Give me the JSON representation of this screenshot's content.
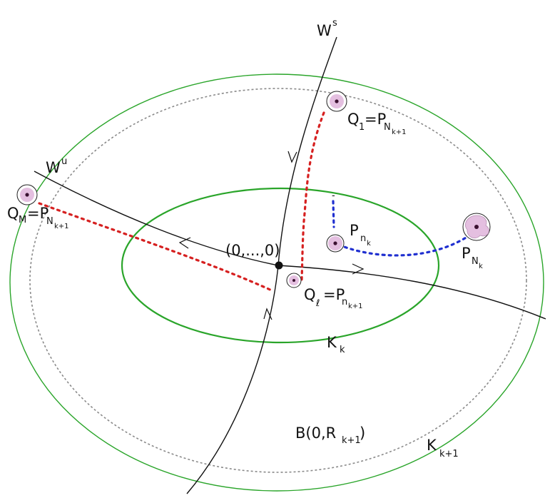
{
  "colors": {
    "set_green": "#2aa52a",
    "ball_gray": "#8a8a8a",
    "manifold_black": "#111111",
    "path_red": "#d62020",
    "path_blue": "#1f2fd0",
    "point_fill": "#e4bfe0",
    "point_core": "#3a1030",
    "point_outline": "#222222"
  },
  "labels": {
    "ws_base": "W",
    "ws_sup": "s",
    "wu_base": "W",
    "wu_sup": "u",
    "origin": "(0,...,0)",
    "q1_base": "Q",
    "q1_sub": "1",
    "q1_p": "=P",
    "q1_psub": "N",
    "q1_psubsub": "k+1",
    "qm_base": "Q",
    "qm_sub": "M",
    "qm_p": "=P",
    "qm_psub": "N",
    "qm_psubsub": "k+1",
    "ql_base": "Q",
    "ql_sub": "ℓ",
    "ql_p": "=P",
    "ql_psub": "n",
    "ql_psubsub": "k+1",
    "pnk_base": "P",
    "pnk_sub": "n",
    "pnk_subsub": "k",
    "pNk_base": "P",
    "pNk_sub": "N",
    "pNk_subsub": "k",
    "kk_base": "K",
    "kk_sub": "k",
    "kk1_base": "K",
    "kk1_sub": "k+1",
    "ball": "B(0,R",
    "ball_sub": "k+1",
    "ball_close": ")",
    "blue_tick": "-"
  },
  "icons": [
    "arrow-icon",
    "cell-icon"
  ]
}
